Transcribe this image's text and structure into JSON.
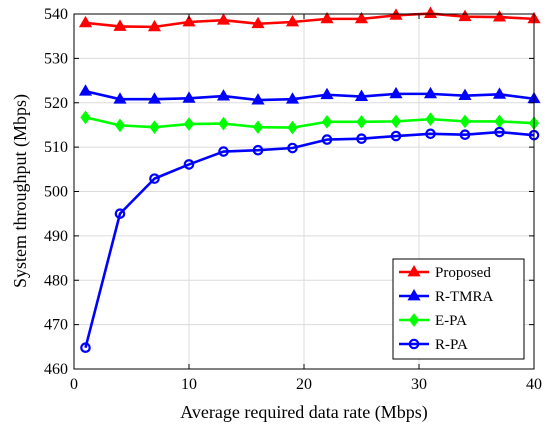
{
  "chart_data": {
    "type": "line",
    "xlabel": "Average required data rate (Mbps)",
    "ylabel": "System throughput (Mbps)",
    "xlim": [
      0,
      40
    ],
    "ylim": [
      460,
      540
    ],
    "xticks": [
      0,
      10,
      20,
      30,
      40
    ],
    "yticks": [
      460,
      470,
      480,
      490,
      500,
      510,
      520,
      530,
      540
    ],
    "grid": true,
    "legend_position": "bottom-right",
    "x": [
      1,
      4,
      7,
      10,
      13,
      16,
      19,
      22,
      25,
      28,
      31,
      34,
      37,
      40
    ],
    "series": [
      {
        "name": "Proposed",
        "color": "#ff0000",
        "marker": "triangle",
        "values": [
          538.0,
          537.2,
          537.1,
          538.2,
          538.6,
          537.8,
          538.2,
          538.9,
          538.9,
          539.7,
          540.1,
          539.4,
          539.3,
          538.9
        ]
      },
      {
        "name": "R-TMRA",
        "color": "#0000ff",
        "marker": "triangle",
        "values": [
          522.6,
          520.8,
          520.8,
          521.0,
          521.5,
          520.6,
          520.8,
          521.8,
          521.4,
          522.0,
          522.0,
          521.6,
          521.9,
          520.9
        ]
      },
      {
        "name": "E-PA",
        "color": "#00ff00",
        "marker": "diamond",
        "values": [
          516.7,
          514.9,
          514.5,
          515.2,
          515.3,
          514.5,
          514.4,
          515.7,
          515.7,
          515.8,
          516.3,
          515.8,
          515.8,
          515.4
        ]
      },
      {
        "name": "R-PA",
        "color": "#0000ff",
        "marker": "circle",
        "values": [
          464.8,
          495.0,
          502.9,
          506.1,
          509.0,
          509.3,
          509.8,
          511.7,
          511.9,
          512.5,
          513.0,
          512.8,
          513.4,
          512.7
        ]
      }
    ]
  }
}
